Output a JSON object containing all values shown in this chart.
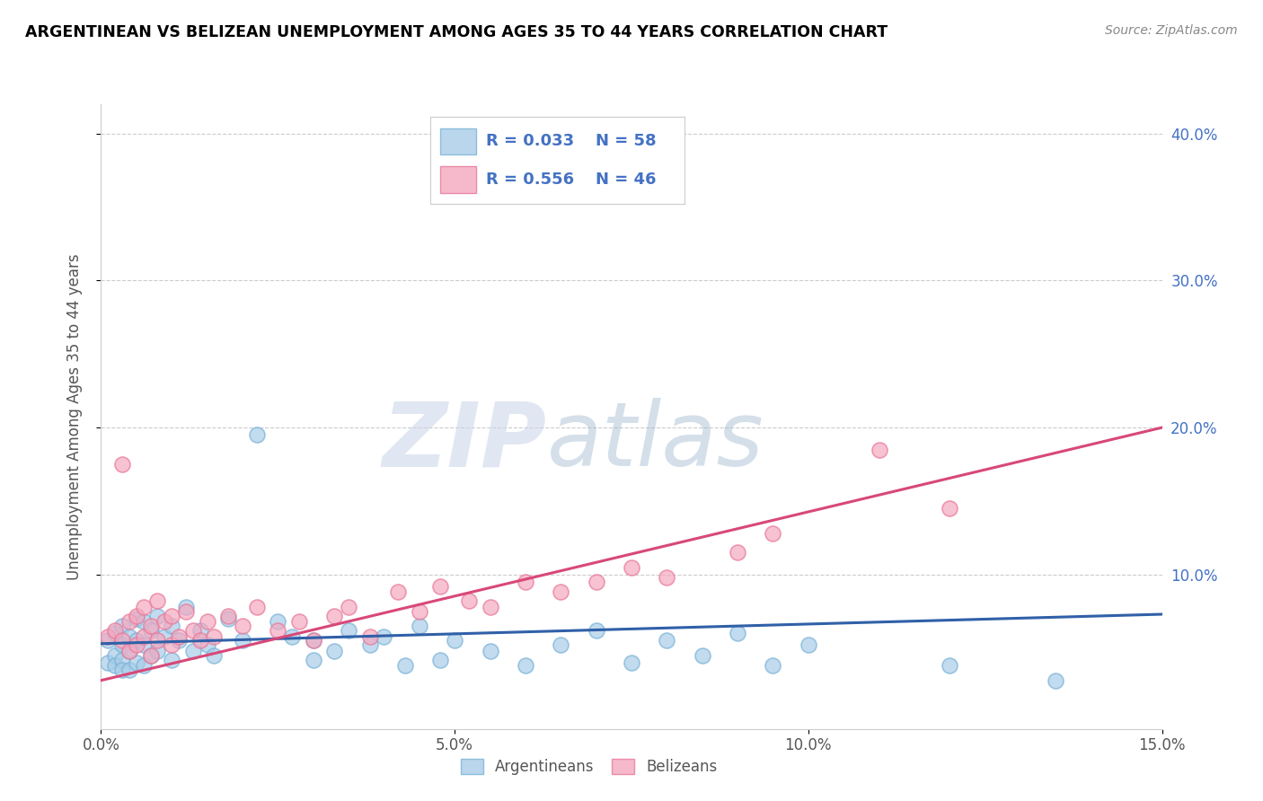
{
  "title": "ARGENTINEAN VS BELIZEAN UNEMPLOYMENT AMONG AGES 35 TO 44 YEARS CORRELATION CHART",
  "source": "Source: ZipAtlas.com",
  "ylabel": "Unemployment Among Ages 35 to 44 years",
  "xlim": [
    0.0,
    0.15
  ],
  "ylim": [
    -0.005,
    0.42
  ],
  "xticks": [
    0.0,
    0.05,
    0.1,
    0.15
  ],
  "xticklabels": [
    "0.0%",
    "5.0%",
    "10.0%",
    "15.0%"
  ],
  "yticks_right": [
    0.1,
    0.2,
    0.3,
    0.4
  ],
  "ytick_right_labels": [
    "10.0%",
    "20.0%",
    "30.0%",
    "40.0%"
  ],
  "legend_r_blue": "R = 0.033",
  "legend_n_blue": "N = 58",
  "legend_r_pink": "R = 0.556",
  "legend_n_pink": "N = 46",
  "blue_scatter_color": "#a8cce8",
  "blue_edge_color": "#7ab3d8",
  "pink_scatter_color": "#f4a8c0",
  "pink_edge_color": "#e87898",
  "blue_line_color": "#3060a8",
  "pink_line_color": "#d84878",
  "right_axis_color": "#4472c4",
  "watermark_zip": "ZIP",
  "watermark_atlas": "atlas",
  "argentinean_x": [
    0.001,
    0.001,
    0.002,
    0.002,
    0.002,
    0.003,
    0.003,
    0.003,
    0.003,
    0.004,
    0.004,
    0.004,
    0.005,
    0.005,
    0.005,
    0.006,
    0.006,
    0.006,
    0.007,
    0.007,
    0.008,
    0.008,
    0.009,
    0.01,
    0.01,
    0.011,
    0.012,
    0.013,
    0.014,
    0.015,
    0.016,
    0.018,
    0.02,
    0.022,
    0.025,
    0.027,
    0.03,
    0.03,
    0.033,
    0.035,
    0.038,
    0.04,
    0.043,
    0.045,
    0.048,
    0.05,
    0.055,
    0.06,
    0.065,
    0.07,
    0.075,
    0.08,
    0.085,
    0.09,
    0.095,
    0.1,
    0.12,
    0.135
  ],
  "argentinean_y": [
    0.055,
    0.04,
    0.06,
    0.045,
    0.038,
    0.065,
    0.052,
    0.042,
    0.035,
    0.058,
    0.048,
    0.035,
    0.07,
    0.055,
    0.04,
    0.068,
    0.052,
    0.038,
    0.062,
    0.045,
    0.072,
    0.048,
    0.058,
    0.065,
    0.042,
    0.055,
    0.078,
    0.048,
    0.062,
    0.052,
    0.045,
    0.07,
    0.055,
    0.195,
    0.068,
    0.058,
    0.042,
    0.055,
    0.048,
    0.062,
    0.052,
    0.058,
    0.038,
    0.065,
    0.042,
    0.055,
    0.048,
    0.038,
    0.052,
    0.062,
    0.04,
    0.055,
    0.045,
    0.06,
    0.038,
    0.052,
    0.038,
    0.028
  ],
  "belizean_x": [
    0.001,
    0.002,
    0.003,
    0.003,
    0.004,
    0.004,
    0.005,
    0.005,
    0.006,
    0.006,
    0.007,
    0.007,
    0.008,
    0.008,
    0.009,
    0.01,
    0.01,
    0.011,
    0.012,
    0.013,
    0.014,
    0.015,
    0.016,
    0.018,
    0.02,
    0.022,
    0.025,
    0.028,
    0.03,
    0.033,
    0.035,
    0.038,
    0.042,
    0.045,
    0.048,
    0.052,
    0.055,
    0.06,
    0.065,
    0.07,
    0.075,
    0.08,
    0.09,
    0.095,
    0.11,
    0.12
  ],
  "belizean_y": [
    0.058,
    0.062,
    0.055,
    0.175,
    0.068,
    0.048,
    0.072,
    0.052,
    0.078,
    0.058,
    0.065,
    0.045,
    0.082,
    0.055,
    0.068,
    0.072,
    0.052,
    0.058,
    0.075,
    0.062,
    0.055,
    0.068,
    0.058,
    0.072,
    0.065,
    0.078,
    0.062,
    0.068,
    0.055,
    0.072,
    0.078,
    0.058,
    0.088,
    0.075,
    0.092,
    0.082,
    0.078,
    0.095,
    0.088,
    0.095,
    0.105,
    0.098,
    0.115,
    0.128,
    0.185,
    0.145
  ],
  "blue_regline_x": [
    0.0,
    0.15
  ],
  "blue_regline_y": [
    0.053,
    0.073
  ],
  "pink_regline_x": [
    0.0,
    0.15
  ],
  "pink_regline_y": [
    0.028,
    0.2
  ]
}
